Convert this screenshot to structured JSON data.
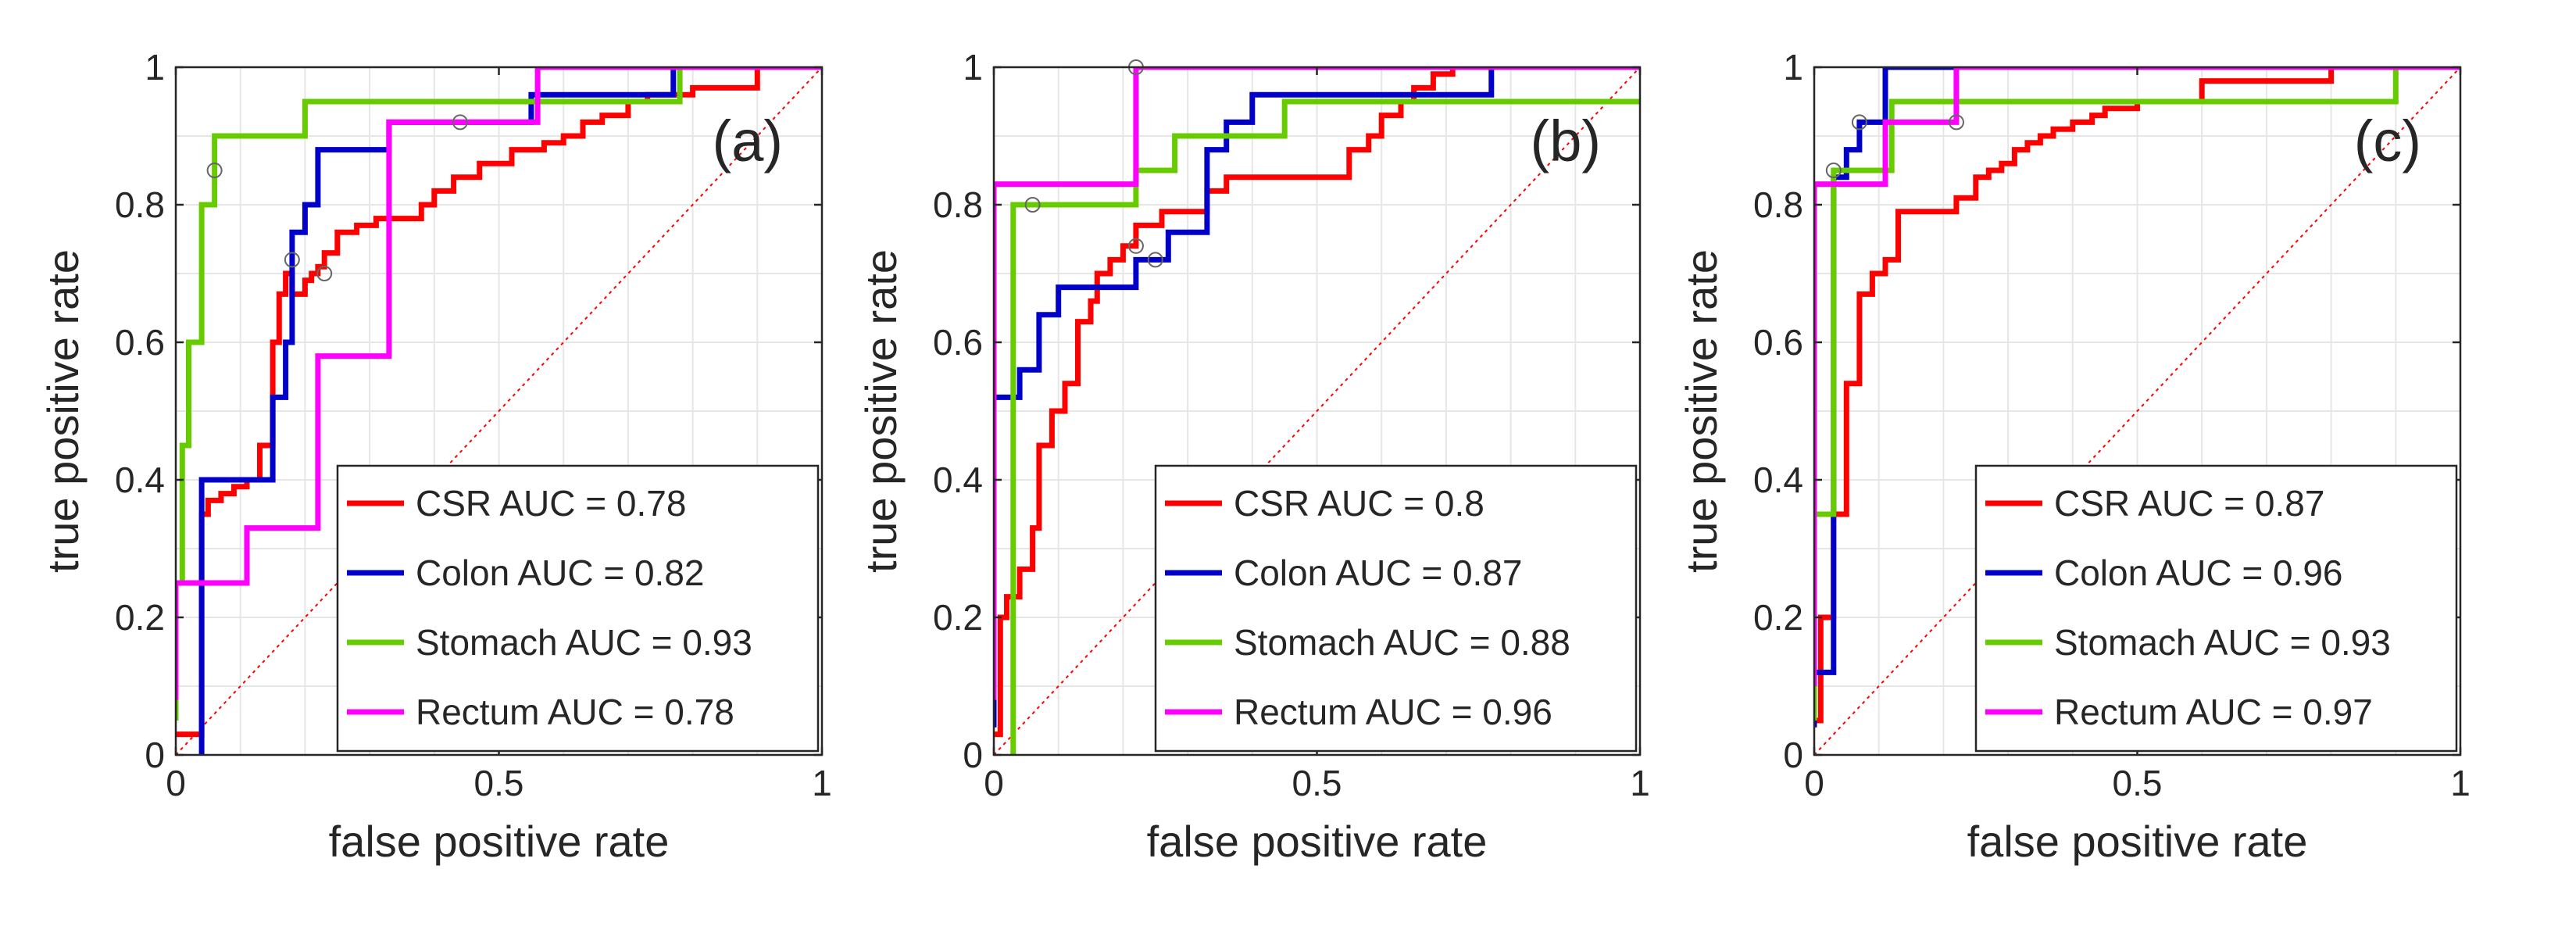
{
  "chart_data": [
    {
      "type": "line",
      "panel_label": "(a)",
      "xlabel": "false positive rate",
      "ylabel": "true positive rate",
      "xlim": [
        0,
        1
      ],
      "ylim": [
        0,
        1
      ],
      "x_ticks": [
        {
          "value": 0,
          "label": "0"
        },
        {
          "value": 0.5,
          "label": "0.5"
        },
        {
          "value": 1,
          "label": "1"
        }
      ],
      "y_ticks": [
        {
          "value": 0,
          "label": "0"
        },
        {
          "value": 0.2,
          "label": "0.2"
        },
        {
          "value": 0.4,
          "label": "0.4"
        },
        {
          "value": 0.6,
          "label": "0.6"
        },
        {
          "value": 0.8,
          "label": "0.8"
        },
        {
          "value": 1,
          "label": "1"
        }
      ],
      "grid": true,
      "legend_position": "bottom-right",
      "diagonal_reference": true,
      "series": [
        {
          "name": "CSR",
          "legend": "CSR AUC = 0.78",
          "auc": 0.78,
          "color": "#ff0000",
          "x": [
            0,
            0.04,
            0.04,
            0.05,
            0.05,
            0.07,
            0.07,
            0.09,
            0.09,
            0.11,
            0.11,
            0.13,
            0.13,
            0.15,
            0.15,
            0.16,
            0.16,
            0.17,
            0.17,
            0.18,
            0.18,
            0.2,
            0.2,
            0.21,
            0.21,
            0.22,
            0.22,
            0.23,
            0.23,
            0.25,
            0.25,
            0.28,
            0.28,
            0.31,
            0.31,
            0.38,
            0.38,
            0.4,
            0.4,
            0.43,
            0.43,
            0.47,
            0.47,
            0.52,
            0.52,
            0.57,
            0.57,
            0.6,
            0.6,
            0.63,
            0.63,
            0.66,
            0.66,
            0.7,
            0.7,
            0.73,
            0.73,
            0.8,
            0.8,
            0.9,
            0.9,
            1
          ],
          "y": [
            0.03,
            0.03,
            0.35,
            0.35,
            0.37,
            0.37,
            0.38,
            0.38,
            0.39,
            0.39,
            0.4,
            0.4,
            0.45,
            0.45,
            0.6,
            0.6,
            0.67,
            0.67,
            0.7,
            0.7,
            0.67,
            0.67,
            0.69,
            0.69,
            0.7,
            0.7,
            0.71,
            0.71,
            0.73,
            0.73,
            0.76,
            0.76,
            0.77,
            0.77,
            0.78,
            0.78,
            0.8,
            0.8,
            0.82,
            0.82,
            0.84,
            0.84,
            0.86,
            0.86,
            0.88,
            0.88,
            0.89,
            0.89,
            0.9,
            0.9,
            0.92,
            0.92,
            0.93,
            0.93,
            0.95,
            0.95,
            0.96,
            0.96,
            0.97,
            0.97,
            1,
            1
          ],
          "markers": [
            [
              0.23,
              0.7
            ]
          ]
        },
        {
          "name": "Colon",
          "legend": "Colon AUC = 0.82",
          "auc": 0.82,
          "color": "#0000c8",
          "x": [
            0.04,
            0.04,
            0.15,
            0.15,
            0.17,
            0.17,
            0.18,
            0.18,
            0.2,
            0.2,
            0.22,
            0.22,
            0.33,
            0.33,
            0.44,
            0.44,
            0.55,
            0.55,
            0.62,
            0.62,
            0.77,
            0.77,
            1
          ],
          "y": [
            0,
            0.4,
            0.4,
            0.52,
            0.52,
            0.6,
            0.6,
            0.76,
            0.76,
            0.8,
            0.8,
            0.88,
            0.88,
            0.92,
            0.92,
            0.92,
            0.92,
            0.96,
            0.96,
            0.96,
            0.96,
            1,
            1
          ],
          "markers": [
            [
              0.18,
              0.72
            ],
            [
              0.44,
              0.92
            ]
          ]
        },
        {
          "name": "Stomach",
          "legend": "Stomach AUC = 0.93",
          "auc": 0.93,
          "color": "#66cc00",
          "x": [
            0,
            0,
            0.01,
            0.01,
            0.02,
            0.02,
            0.04,
            0.04,
            0.06,
            0.06,
            0.12,
            0.12,
            0.2,
            0.2,
            0.6,
            0.6,
            0.78,
            0.78,
            1
          ],
          "y": [
            0.05,
            0.25,
            0.25,
            0.45,
            0.45,
            0.6,
            0.6,
            0.8,
            0.8,
            0.9,
            0.9,
            0.9,
            0.9,
            0.95,
            0.95,
            0.95,
            0.95,
            1,
            1
          ],
          "markers": [
            [
              0.06,
              0.85
            ]
          ]
        },
        {
          "name": "Rectum",
          "legend": "Rectum AUC = 0.78",
          "auc": 0.78,
          "color": "#ff00ff",
          "x": [
            0,
            0,
            0.11,
            0.11,
            0.22,
            0.22,
            0.33,
            0.33,
            0.56,
            0.56,
            1
          ],
          "y": [
            0.08,
            0.25,
            0.25,
            0.33,
            0.33,
            0.58,
            0.58,
            0.92,
            0.92,
            1,
            1
          ],
          "markers": []
        }
      ]
    },
    {
      "type": "line",
      "panel_label": "(b)",
      "xlabel": "false positive rate",
      "ylabel": "true positive rate",
      "xlim": [
        0,
        1
      ],
      "ylim": [
        0,
        1
      ],
      "x_ticks": [
        {
          "value": 0,
          "label": "0"
        },
        {
          "value": 0.5,
          "label": "0.5"
        },
        {
          "value": 1,
          "label": "1"
        }
      ],
      "y_ticks": [
        {
          "value": 0,
          "label": "0"
        },
        {
          "value": 0.2,
          "label": "0.2"
        },
        {
          "value": 0.4,
          "label": "0.4"
        },
        {
          "value": 0.6,
          "label": "0.6"
        },
        {
          "value": 0.8,
          "label": "0.8"
        },
        {
          "value": 1,
          "label": "1"
        }
      ],
      "grid": true,
      "legend_position": "bottom-right",
      "diagonal_reference": true,
      "series": [
        {
          "name": "CSR",
          "legend": "CSR AUC = 0.8",
          "auc": 0.8,
          "color": "#ff0000",
          "x": [
            0,
            0.01,
            0.01,
            0.02,
            0.02,
            0.04,
            0.04,
            0.06,
            0.06,
            0.07,
            0.07,
            0.09,
            0.09,
            0.11,
            0.11,
            0.13,
            0.13,
            0.15,
            0.15,
            0.16,
            0.16,
            0.18,
            0.18,
            0.2,
            0.2,
            0.22,
            0.22,
            0.26,
            0.26,
            0.33,
            0.33,
            0.36,
            0.36,
            0.43,
            0.43,
            0.55,
            0.55,
            0.58,
            0.58,
            0.6,
            0.6,
            0.63,
            0.63,
            0.65,
            0.65,
            0.68,
            0.68,
            0.71,
            0.71,
            0.76,
            0.76,
            1
          ],
          "y": [
            0.03,
            0.03,
            0.2,
            0.2,
            0.23,
            0.23,
            0.27,
            0.27,
            0.33,
            0.33,
            0.45,
            0.45,
            0.5,
            0.5,
            0.54,
            0.54,
            0.63,
            0.63,
            0.66,
            0.66,
            0.7,
            0.7,
            0.72,
            0.72,
            0.74,
            0.74,
            0.77,
            0.77,
            0.79,
            0.79,
            0.82,
            0.82,
            0.84,
            0.84,
            0.84,
            0.84,
            0.88,
            0.88,
            0.9,
            0.9,
            0.93,
            0.93,
            0.95,
            0.95,
            0.97,
            0.97,
            0.99,
            0.99,
            1,
            1,
            1,
            1
          ],
          "markers": [
            [
              0.22,
              0.74
            ]
          ]
        },
        {
          "name": "Colon",
          "legend": "Colon AUC = 0.87",
          "auc": 0.87,
          "color": "#0000c8",
          "x": [
            0,
            0,
            0.04,
            0.04,
            0.07,
            0.07,
            0.1,
            0.1,
            0.22,
            0.22,
            0.27,
            0.27,
            0.33,
            0.33,
            0.36,
            0.36,
            0.38,
            0.38,
            0.4,
            0.4,
            0.77,
            0.77,
            1
          ],
          "y": [
            0.04,
            0.52,
            0.52,
            0.56,
            0.56,
            0.64,
            0.64,
            0.68,
            0.68,
            0.72,
            0.72,
            0.76,
            0.76,
            0.88,
            0.88,
            0.92,
            0.92,
            0.92,
            0.92,
            0.96,
            0.96,
            1,
            1
          ],
          "markers": [
            [
              0.25,
              0.72
            ]
          ]
        },
        {
          "name": "Stomach",
          "legend": "Stomach AUC = 0.88",
          "auc": 0.88,
          "color": "#66cc00",
          "x": [
            0.03,
            0.03,
            0.06,
            0.06,
            0.22,
            0.22,
            0.28,
            0.28,
            0.38,
            0.38,
            0.45,
            0.45,
            0.6,
            0.6,
            1
          ],
          "y": [
            0,
            0.8,
            0.8,
            0.8,
            0.8,
            0.85,
            0.85,
            0.9,
            0.9,
            0.9,
            0.9,
            0.95,
            0.95,
            0.95,
            0.95
          ],
          "markers": [
            [
              0.06,
              0.8
            ]
          ]
        },
        {
          "name": "Rectum",
          "legend": "Rectum AUC = 0.96",
          "auc": 0.96,
          "color": "#ff00ff",
          "x": [
            0,
            0,
            0.22,
            0.22,
            1
          ],
          "y": [
            0.08,
            0.83,
            0.83,
            1,
            1
          ],
          "markers": [
            [
              0.22,
              1
            ]
          ]
        }
      ]
    },
    {
      "type": "line",
      "panel_label": "(c)",
      "xlabel": "false positive rate",
      "ylabel": "true positive rate",
      "xlim": [
        0,
        1
      ],
      "ylim": [
        0,
        1
      ],
      "x_ticks": [
        {
          "value": 0,
          "label": "0"
        },
        {
          "value": 0.5,
          "label": "0.5"
        },
        {
          "value": 1,
          "label": "1"
        }
      ],
      "y_ticks": [
        {
          "value": 0,
          "label": "0"
        },
        {
          "value": 0.2,
          "label": "0.2"
        },
        {
          "value": 0.4,
          "label": "0.4"
        },
        {
          "value": 0.6,
          "label": "0.6"
        },
        {
          "value": 0.8,
          "label": "0.8"
        },
        {
          "value": 1,
          "label": "1"
        }
      ],
      "grid": true,
      "legend_position": "bottom-right",
      "diagonal_reference": true,
      "series": [
        {
          "name": "CSR",
          "legend": "CSR AUC = 0.87",
          "auc": 0.87,
          "color": "#ff0000",
          "x": [
            0,
            0.01,
            0.01,
            0.03,
            0.03,
            0.05,
            0.05,
            0.07,
            0.07,
            0.09,
            0.09,
            0.11,
            0.11,
            0.13,
            0.13,
            0.22,
            0.22,
            0.25,
            0.25,
            0.27,
            0.27,
            0.29,
            0.29,
            0.31,
            0.31,
            0.33,
            0.33,
            0.35,
            0.35,
            0.37,
            0.37,
            0.4,
            0.4,
            0.43,
            0.43,
            0.45,
            0.45,
            0.5,
            0.5,
            0.6,
            0.6,
            0.8,
            0.8,
            1
          ],
          "y": [
            0.05,
            0.05,
            0.2,
            0.2,
            0.35,
            0.35,
            0.54,
            0.54,
            0.67,
            0.67,
            0.7,
            0.7,
            0.72,
            0.72,
            0.79,
            0.79,
            0.81,
            0.81,
            0.84,
            0.84,
            0.85,
            0.85,
            0.86,
            0.86,
            0.88,
            0.88,
            0.89,
            0.89,
            0.9,
            0.9,
            0.91,
            0.91,
            0.92,
            0.92,
            0.93,
            0.93,
            0.94,
            0.94,
            0.95,
            0.95,
            0.98,
            0.98,
            1,
            1
          ],
          "markers": []
        },
        {
          "name": "Colon",
          "legend": "Colon AUC = 0.96",
          "auc": 0.96,
          "color": "#0000c8",
          "x": [
            0,
            0,
            0.03,
            0.03,
            0.05,
            0.05,
            0.07,
            0.07,
            0.11,
            0.11,
            0.22,
            0.22,
            1
          ],
          "y": [
            0.04,
            0.12,
            0.12,
            0.84,
            0.84,
            0.88,
            0.88,
            0.92,
            0.92,
            1,
            1,
            1,
            1
          ],
          "markers": [
            [
              0.07,
              0.92
            ]
          ]
        },
        {
          "name": "Stomach",
          "legend": "Stomach AUC = 0.93",
          "auc": 0.93,
          "color": "#66cc00",
          "x": [
            0,
            0,
            0.01,
            0.01,
            0.03,
            0.03,
            0.12,
            0.12,
            0.9,
            0.9,
            1
          ],
          "y": [
            0.05,
            0.35,
            0.35,
            0.35,
            0.35,
            0.85,
            0.85,
            0.95,
            0.95,
            1,
            1
          ],
          "markers": [
            [
              0.03,
              0.85
            ]
          ]
        },
        {
          "name": "Rectum",
          "legend": "Rectum AUC = 0.97",
          "auc": 0.97,
          "color": "#ff00ff",
          "x": [
            0,
            0,
            0.11,
            0.11,
            0.22,
            0.22,
            1
          ],
          "y": [
            0.1,
            0.83,
            0.83,
            0.92,
            0.92,
            1,
            1
          ],
          "markers": [
            [
              0.22,
              0.92
            ]
          ]
        }
      ]
    }
  ]
}
